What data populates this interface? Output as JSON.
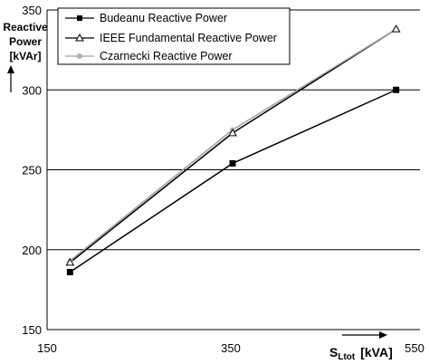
{
  "chart_data": {
    "type": "line",
    "x": [
      175,
      352,
      530
    ],
    "xlim": [
      150,
      550
    ],
    "ylim": [
      150,
      350
    ],
    "x_ticks": [
      "150",
      "350",
      "550"
    ],
    "y_ticks": [
      "150",
      "200",
      "250",
      "300",
      "350"
    ],
    "ylabel_lines": [
      "Reactive",
      "Power",
      "[kVAr]"
    ],
    "xlabel_main": "S",
    "xlabel_sub": "Ltot",
    "xlabel_unit": "[kVA]",
    "grid": "horizontal",
    "legend_position": "top-left-inside",
    "series": [
      {
        "name": "Budeanu Reactive Power",
        "values": [
          186,
          254,
          300
        ],
        "color": "#000000",
        "marker": "square"
      },
      {
        "name": "IEEE Fundamental Reactive Power",
        "values": [
          192,
          273,
          338
        ],
        "color": "#000000",
        "marker": "triangle"
      },
      {
        "name": "Czarnecki Reactive Power",
        "values": [
          193,
          275,
          338
        ],
        "color": "#a0a0a0",
        "marker": "circle"
      }
    ]
  }
}
